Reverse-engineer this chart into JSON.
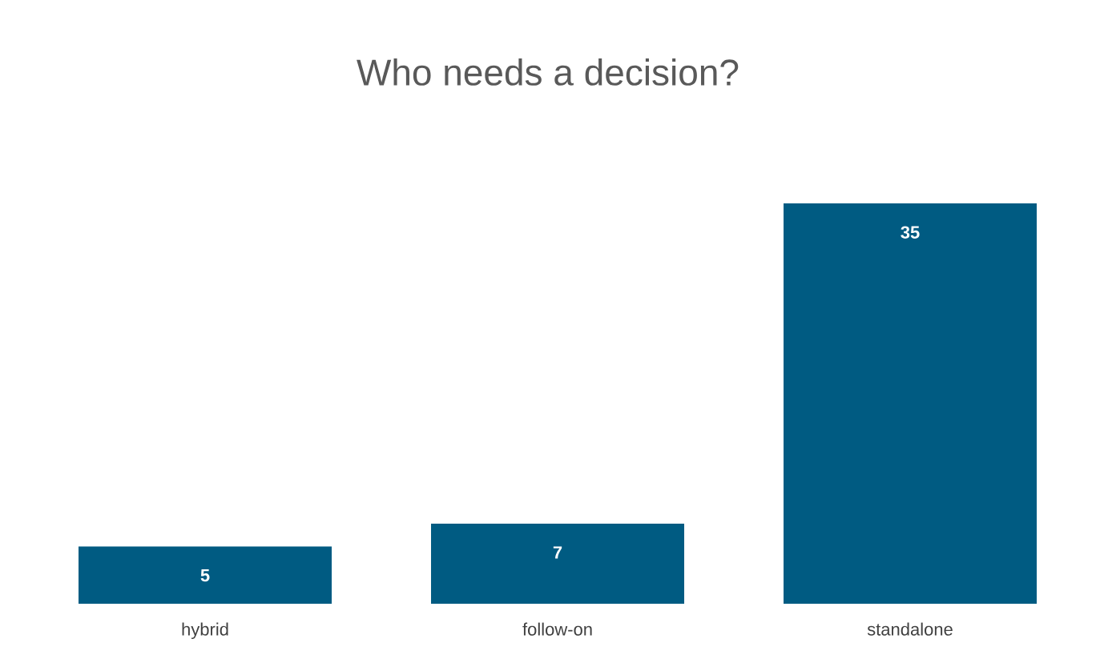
{
  "chart_data": {
    "type": "bar",
    "title": "Who needs a decision?",
    "categories": [
      "hybrid",
      "follow-on",
      "standalone"
    ],
    "values": [
      5,
      7,
      35
    ],
    "color": "#005b82",
    "data_labels": true
  }
}
